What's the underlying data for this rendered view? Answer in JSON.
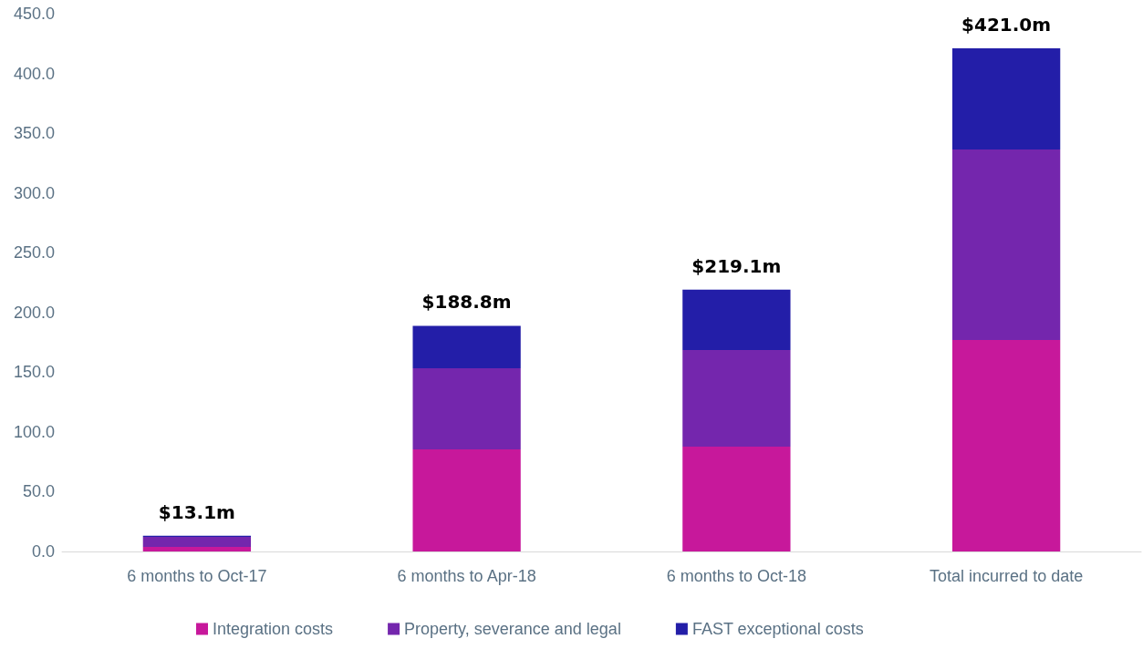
{
  "chart_data": {
    "type": "bar",
    "stacked": true,
    "categories": [
      "6 months to Oct-17",
      "6 months to Apr-18",
      "6 months to Oct-18",
      "Total incurred to date"
    ],
    "series": [
      {
        "name": "Integration costs",
        "color": "#c7189b",
        "values": [
          3.8,
          85.4,
          87.7,
          177.0
        ]
      },
      {
        "name": "Property, severance and legal",
        "color": "#7426ad",
        "values": [
          8.4,
          67.9,
          80.9,
          159.4
        ]
      },
      {
        "name": "FAST exceptional costs",
        "color": "#231ea8",
        "values": [
          0.9,
          35.5,
          50.5,
          84.6
        ]
      }
    ],
    "totals": [
      "$13.1m",
      "$188.8m",
      "$219.1m",
      "$421.0m"
    ],
    "ylim": [
      0,
      450
    ],
    "yticks": [
      {
        "value": 0,
        "label": "0.0"
      },
      {
        "value": 50,
        "label": "50.0"
      },
      {
        "value": 100,
        "label": "100.0"
      },
      {
        "value": 150,
        "label": "150.0"
      },
      {
        "value": 200,
        "label": "200.0"
      },
      {
        "value": 250,
        "label": "250.0"
      },
      {
        "value": 300,
        "label": "300.0"
      },
      {
        "value": 350,
        "label": "350.0"
      },
      {
        "value": 400,
        "label": "400.0"
      },
      {
        "value": 450,
        "label": "450.0"
      }
    ],
    "grid": false,
    "legend": "bottom"
  }
}
